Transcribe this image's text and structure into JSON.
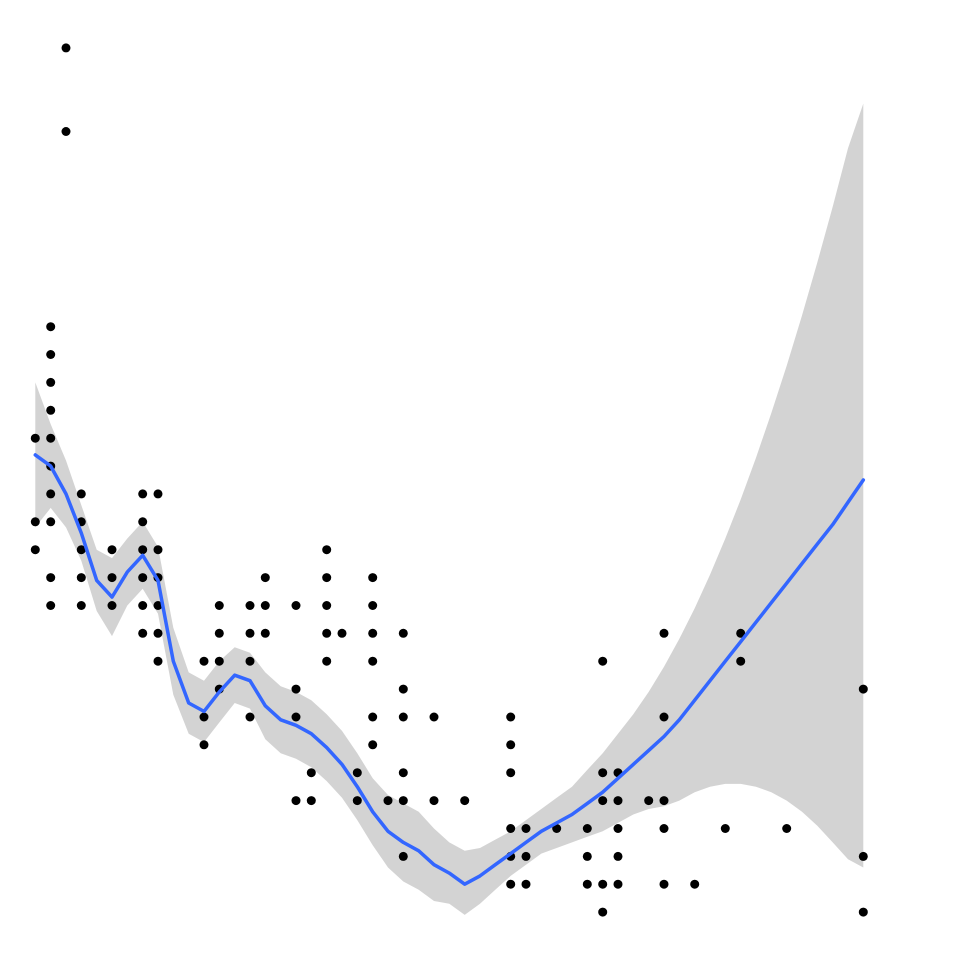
{
  "chart_data": {
    "type": "scatter",
    "title": "",
    "xlabel": "",
    "ylabel": "",
    "grid": false,
    "xlim": [
      1.5,
      7.5
    ],
    "ylim": [
      12,
      45
    ],
    "colors": {
      "points": "#000000",
      "smooth_line": "#3366FF",
      "confidence_band": "#D3D3D3"
    },
    "points": [
      [
        1.6,
        26
      ],
      [
        1.6,
        27
      ],
      [
        1.6,
        30
      ],
      [
        1.8,
        44
      ],
      [
        1.8,
        41
      ],
      [
        1.7,
        34
      ],
      [
        1.7,
        33
      ],
      [
        1.7,
        32
      ],
      [
        1.7,
        31
      ],
      [
        1.7,
        30
      ],
      [
        1.7,
        29
      ],
      [
        1.7,
        28
      ],
      [
        1.7,
        27
      ],
      [
        1.7,
        25
      ],
      [
        1.7,
        24
      ],
      [
        1.9,
        28
      ],
      [
        1.9,
        27
      ],
      [
        1.9,
        26
      ],
      [
        1.9,
        25
      ],
      [
        1.9,
        24
      ],
      [
        2.1,
        26
      ],
      [
        2.1,
        25
      ],
      [
        2.1,
        24
      ],
      [
        2.3,
        28
      ],
      [
        2.3,
        27
      ],
      [
        2.3,
        26
      ],
      [
        2.3,
        25
      ],
      [
        2.3,
        24
      ],
      [
        2.3,
        23
      ],
      [
        2.4,
        28
      ],
      [
        2.4,
        26
      ],
      [
        2.4,
        25
      ],
      [
        2.4,
        24
      ],
      [
        2.4,
        23
      ],
      [
        2.4,
        22
      ],
      [
        2.7,
        22
      ],
      [
        2.7,
        20
      ],
      [
        2.7,
        19
      ],
      [
        2.8,
        24
      ],
      [
        2.8,
        23
      ],
      [
        2.8,
        22
      ],
      [
        2.8,
        21
      ],
      [
        3.0,
        24
      ],
      [
        3.0,
        23
      ],
      [
        3.0,
        22
      ],
      [
        3.0,
        20
      ],
      [
        3.1,
        25
      ],
      [
        3.1,
        24
      ],
      [
        3.1,
        23
      ],
      [
        3.3,
        24
      ],
      [
        3.3,
        21
      ],
      [
        3.3,
        20
      ],
      [
        3.3,
        17
      ],
      [
        3.4,
        18
      ],
      [
        3.4,
        17
      ],
      [
        3.5,
        26
      ],
      [
        3.5,
        25
      ],
      [
        3.5,
        24
      ],
      [
        3.5,
        23
      ],
      [
        3.5,
        22
      ],
      [
        3.6,
        23
      ],
      [
        3.7,
        18
      ],
      [
        3.7,
        17
      ],
      [
        3.8,
        25
      ],
      [
        3.8,
        24
      ],
      [
        3.8,
        23
      ],
      [
        3.8,
        22
      ],
      [
        3.8,
        20
      ],
      [
        3.8,
        19
      ],
      [
        3.9,
        17
      ],
      [
        4.0,
        23
      ],
      [
        4.0,
        21
      ],
      [
        4.0,
        20
      ],
      [
        4.0,
        18
      ],
      [
        4.0,
        17
      ],
      [
        4.0,
        15
      ],
      [
        4.2,
        20
      ],
      [
        4.2,
        17
      ],
      [
        4.4,
        17
      ],
      [
        4.7,
        20
      ],
      [
        4.7,
        19
      ],
      [
        4.7,
        18
      ],
      [
        4.7,
        16
      ],
      [
        4.7,
        15
      ],
      [
        4.7,
        14
      ],
      [
        4.8,
        16
      ],
      [
        4.8,
        15
      ],
      [
        4.8,
        14
      ],
      [
        4.8,
        11
      ],
      [
        5.0,
        16
      ],
      [
        5.2,
        16
      ],
      [
        5.2,
        15
      ],
      [
        5.2,
        14
      ],
      [
        5.3,
        22
      ],
      [
        5.3,
        18
      ],
      [
        5.3,
        17
      ],
      [
        5.3,
        14
      ],
      [
        5.3,
        13
      ],
      [
        5.4,
        18
      ],
      [
        5.4,
        17
      ],
      [
        5.4,
        16
      ],
      [
        5.4,
        15
      ],
      [
        5.4,
        14
      ],
      [
        5.6,
        17
      ],
      [
        5.7,
        23
      ],
      [
        5.7,
        20
      ],
      [
        5.7,
        17
      ],
      [
        5.7,
        16
      ],
      [
        5.7,
        14
      ],
      [
        5.9,
        14
      ],
      [
        6.1,
        16
      ],
      [
        6.2,
        23
      ],
      [
        6.2,
        22
      ],
      [
        6.5,
        16
      ],
      [
        7.0,
        15
      ],
      [
        7.0,
        13
      ],
      [
        7.0,
        21
      ]
    ],
    "smooth_fit": [
      [
        1.6,
        29.4
      ],
      [
        1.7,
        29.0
      ],
      [
        1.8,
        28.0
      ],
      [
        1.9,
        26.6
      ],
      [
        2.0,
        24.9
      ],
      [
        2.1,
        24.3
      ],
      [
        2.2,
        25.2
      ],
      [
        2.3,
        25.8
      ],
      [
        2.4,
        24.9
      ],
      [
        2.5,
        22.0
      ],
      [
        2.6,
        20.5
      ],
      [
        2.7,
        20.2
      ],
      [
        2.8,
        20.9
      ],
      [
        2.9,
        21.5
      ],
      [
        3.0,
        21.3
      ],
      [
        3.1,
        20.4
      ],
      [
        3.2,
        19.9
      ],
      [
        3.3,
        19.7
      ],
      [
        3.4,
        19.4
      ],
      [
        3.5,
        18.9
      ],
      [
        3.6,
        18.3
      ],
      [
        3.7,
        17.5
      ],
      [
        3.8,
        16.6
      ],
      [
        3.9,
        15.9
      ],
      [
        4.0,
        15.5
      ],
      [
        4.1,
        15.2
      ],
      [
        4.2,
        14.7
      ],
      [
        4.3,
        14.4
      ],
      [
        4.4,
        14.0
      ],
      [
        4.5,
        14.3
      ],
      [
        4.6,
        14.7
      ],
      [
        4.7,
        15.1
      ],
      [
        4.8,
        15.5
      ],
      [
        4.9,
        15.9
      ],
      [
        5.0,
        16.2
      ],
      [
        5.1,
        16.5
      ],
      [
        5.2,
        16.9
      ],
      [
        5.3,
        17.3
      ],
      [
        5.4,
        17.8
      ],
      [
        5.5,
        18.3
      ],
      [
        5.6,
        18.8
      ],
      [
        5.7,
        19.3
      ],
      [
        5.8,
        19.9
      ],
      [
        5.9,
        20.6
      ],
      [
        6.0,
        21.3
      ],
      [
        6.1,
        22.0
      ],
      [
        6.2,
        22.7
      ],
      [
        6.3,
        23.4
      ],
      [
        6.4,
        24.1
      ],
      [
        6.5,
        24.8
      ],
      [
        6.6,
        25.5
      ],
      [
        6.7,
        26.2
      ],
      [
        6.8,
        26.9
      ],
      [
        6.9,
        27.7
      ],
      [
        7.0,
        28.5
      ]
    ],
    "smooth_ci_upper": [
      [
        1.6,
        32.0
      ],
      [
        1.7,
        30.5
      ],
      [
        1.8,
        29.2
      ],
      [
        1.9,
        27.6
      ],
      [
        2.0,
        26.0
      ],
      [
        2.1,
        25.7
      ],
      [
        2.2,
        26.4
      ],
      [
        2.3,
        27.0
      ],
      [
        2.4,
        26.1
      ],
      [
        2.5,
        23.2
      ],
      [
        2.6,
        21.6
      ],
      [
        2.7,
        21.3
      ],
      [
        2.8,
        22.0
      ],
      [
        2.9,
        22.5
      ],
      [
        3.0,
        22.3
      ],
      [
        3.1,
        21.6
      ],
      [
        3.2,
        21.1
      ],
      [
        3.3,
        20.9
      ],
      [
        3.4,
        20.6
      ],
      [
        3.5,
        20.1
      ],
      [
        3.6,
        19.5
      ],
      [
        3.7,
        18.7
      ],
      [
        3.8,
        17.8
      ],
      [
        3.9,
        17.2
      ],
      [
        4.0,
        16.9
      ],
      [
        4.1,
        16.6
      ],
      [
        4.2,
        16.0
      ],
      [
        4.3,
        15.5
      ],
      [
        4.4,
        15.2
      ],
      [
        4.5,
        15.3
      ],
      [
        4.6,
        15.6
      ],
      [
        4.7,
        15.9
      ],
      [
        4.8,
        16.3
      ],
      [
        4.9,
        16.7
      ],
      [
        5.0,
        17.1
      ],
      [
        5.1,
        17.5
      ],
      [
        5.2,
        18.1
      ],
      [
        5.3,
        18.7
      ],
      [
        5.4,
        19.4
      ],
      [
        5.5,
        20.1
      ],
      [
        5.6,
        20.9
      ],
      [
        5.7,
        21.8
      ],
      [
        5.8,
        22.8
      ],
      [
        5.9,
        23.9
      ],
      [
        6.0,
        25.1
      ],
      [
        6.1,
        26.4
      ],
      [
        6.2,
        27.8
      ],
      [
        6.3,
        29.3
      ],
      [
        6.4,
        30.9
      ],
      [
        6.5,
        32.6
      ],
      [
        6.6,
        34.4
      ],
      [
        6.7,
        36.3
      ],
      [
        6.8,
        38.3
      ],
      [
        6.9,
        40.4
      ],
      [
        7.0,
        42.0
      ]
    ],
    "smooth_ci_lower": [
      [
        1.6,
        26.8
      ],
      [
        1.7,
        27.5
      ],
      [
        1.8,
        26.8
      ],
      [
        1.9,
        25.6
      ],
      [
        2.0,
        23.8
      ],
      [
        2.1,
        22.9
      ],
      [
        2.2,
        24.0
      ],
      [
        2.3,
        24.6
      ],
      [
        2.4,
        23.7
      ],
      [
        2.5,
        20.8
      ],
      [
        2.6,
        19.4
      ],
      [
        2.7,
        19.1
      ],
      [
        2.8,
        19.8
      ],
      [
        2.9,
        20.5
      ],
      [
        3.0,
        20.3
      ],
      [
        3.1,
        19.2
      ],
      [
        3.2,
        18.7
      ],
      [
        3.3,
        18.5
      ],
      [
        3.4,
        18.2
      ],
      [
        3.5,
        17.7
      ],
      [
        3.6,
        17.1
      ],
      [
        3.7,
        16.3
      ],
      [
        3.8,
        15.4
      ],
      [
        3.9,
        14.6
      ],
      [
        4.0,
        14.1
      ],
      [
        4.1,
        13.8
      ],
      [
        4.2,
        13.4
      ],
      [
        4.3,
        13.3
      ],
      [
        4.4,
        12.9
      ],
      [
        4.5,
        13.3
      ],
      [
        4.6,
        13.8
      ],
      [
        4.7,
        14.3
      ],
      [
        4.8,
        14.7
      ],
      [
        4.9,
        15.1
      ],
      [
        5.0,
        15.3
      ],
      [
        5.1,
        15.5
      ],
      [
        5.2,
        15.7
      ],
      [
        5.3,
        15.9
      ],
      [
        5.4,
        16.2
      ],
      [
        5.5,
        16.5
      ],
      [
        5.6,
        16.7
      ],
      [
        5.7,
        16.8
      ],
      [
        5.8,
        17.0
      ],
      [
        5.9,
        17.3
      ],
      [
        6.0,
        17.5
      ],
      [
        6.1,
        17.6
      ],
      [
        6.2,
        17.6
      ],
      [
        6.3,
        17.5
      ],
      [
        6.4,
        17.3
      ],
      [
        6.5,
        17.0
      ],
      [
        6.6,
        16.6
      ],
      [
        6.7,
        16.1
      ],
      [
        6.8,
        15.5
      ],
      [
        6.9,
        14.9
      ],
      [
        7.0,
        14.6
      ]
    ]
  }
}
